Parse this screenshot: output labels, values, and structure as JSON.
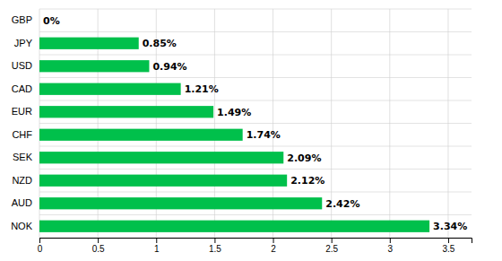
{
  "chart_data": {
    "type": "bar",
    "orientation": "horizontal",
    "categories": [
      "GBP",
      "JPY",
      "USD",
      "CAD",
      "EUR",
      "CHF",
      "SEK",
      "NZD",
      "AUD",
      "NOK"
    ],
    "values": [
      0.0,
      0.85,
      0.94,
      1.21,
      1.49,
      1.74,
      2.09,
      2.12,
      2.42,
      3.34
    ],
    "value_labels": [
      "0%",
      "0.85%",
      "0.94%",
      "1.21%",
      "1.49%",
      "1.74%",
      "2.09%",
      "2.12%",
      "2.42%",
      "3.34%"
    ],
    "data_labels": true,
    "color": "#00c04b",
    "xlim": [
      0,
      3.7
    ],
    "xticks": [
      0,
      0.5,
      1,
      1.5,
      2,
      2.5,
      3,
      3.5
    ],
    "grid": true
  }
}
